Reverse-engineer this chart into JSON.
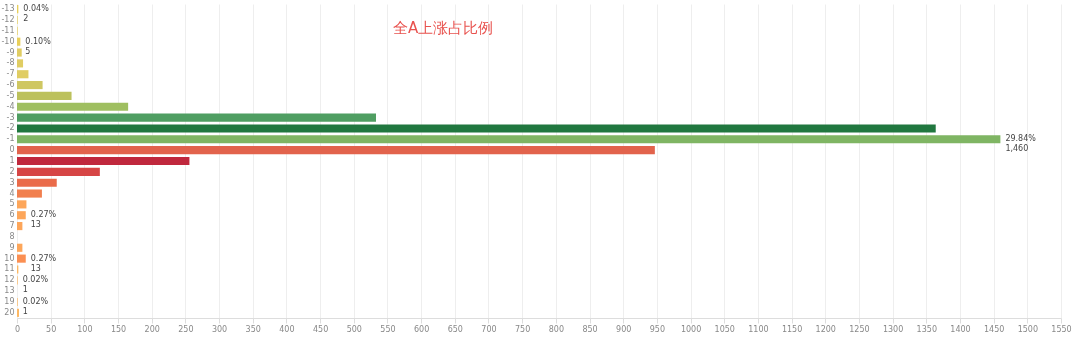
{
  "chart_data": {
    "type": "bar",
    "orientation": "horizontal",
    "title": "全A上涨占比例",
    "categories": [
      "-13",
      "-12",
      "-11",
      "-10",
      "-9",
      "-8",
      "-7",
      "-6",
      "-5",
      "-4",
      "-3",
      "-2",
      "-1",
      "0",
      "1",
      "2",
      "3",
      "4",
      "5",
      "6",
      "7",
      "8",
      "9",
      "10",
      "11",
      "12",
      "13",
      "19",
      "20"
    ],
    "values": [
      2,
      1,
      1,
      5,
      7,
      9,
      17,
      38,
      81,
      165,
      533,
      1364,
      1460,
      947,
      256,
      123,
      59,
      37,
      14,
      13,
      8,
      0,
      8,
      13,
      2,
      1,
      0,
      1,
      3
    ],
    "value_labels": [
      "0.04%\n2",
      null,
      null,
      "0.10%\n5",
      null,
      null,
      null,
      null,
      null,
      null,
      null,
      null,
      "29.84%\n1,460",
      null,
      null,
      null,
      null,
      null,
      null,
      "0.27%\n13",
      null,
      null,
      null,
      "0.27%\n13",
      null,
      "0.02%\n1",
      null,
      "0.02%\n1",
      null
    ],
    "colors": [
      "#e8cf5a",
      "#e8cf5a",
      "#e8cf5a",
      "#e8cf5a",
      "#e0cd63",
      "#e0cd63",
      "#e0cd63",
      "#cfc762",
      "#bcc15c",
      "#9fbf60",
      "#4f9e62",
      "#20773f",
      "#7fb563",
      "#e2634c",
      "#c0283d",
      "#d64545",
      "#ea6b4a",
      "#f17f4e",
      "#fda65a",
      "#fda65a",
      "#fda65a",
      "#fda65a",
      "#fda65a",
      "#fb8f52",
      "#fdb863",
      "#fdb863",
      "#fdb863",
      "#fdb863",
      "#fdb863"
    ],
    "xlim": [
      0,
      1550
    ],
    "xticks": [
      0,
      50,
      100,
      150,
      200,
      250,
      300,
      350,
      400,
      450,
      500,
      550,
      600,
      650,
      700,
      750,
      800,
      850,
      900,
      950,
      1000,
      1050,
      1100,
      1150,
      1200,
      1250,
      1300,
      1350,
      1400,
      1450,
      1500,
      1550
    ],
    "grid": "x"
  }
}
